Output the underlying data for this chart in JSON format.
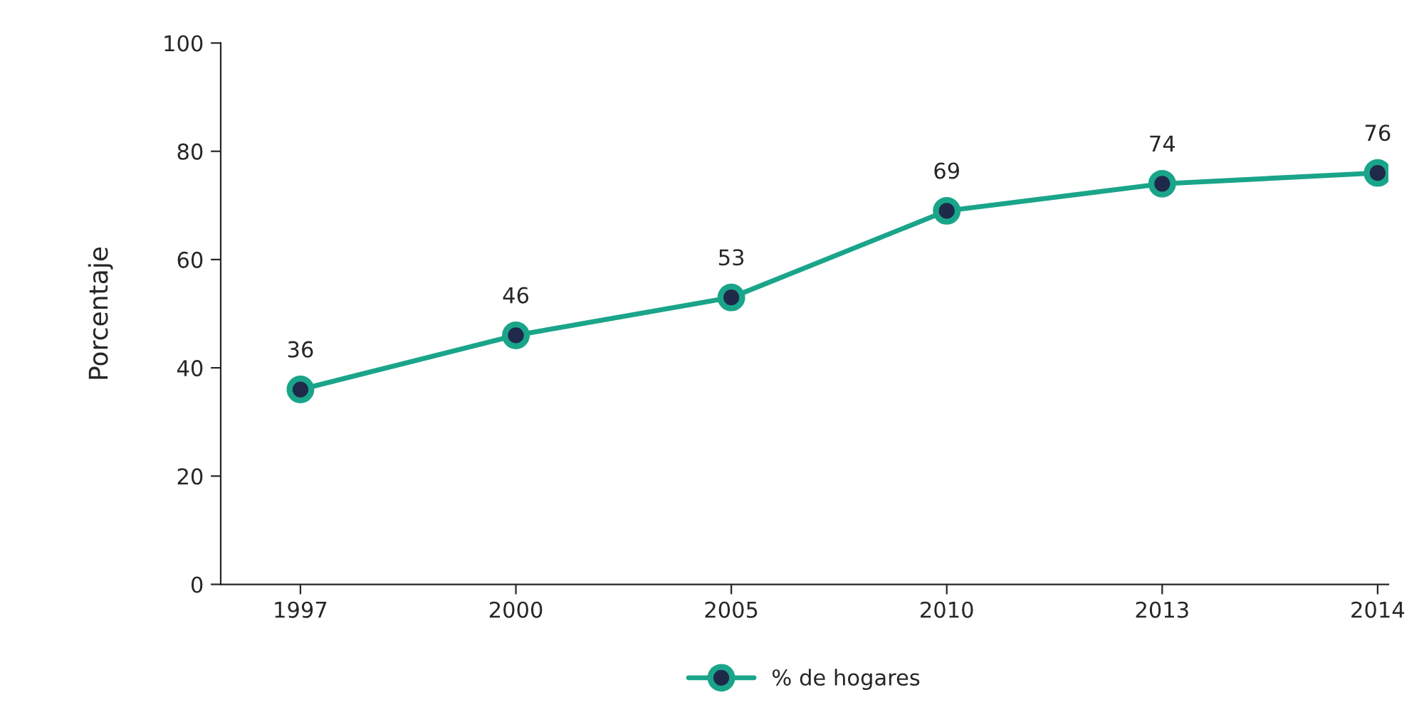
{
  "chart_data": {
    "type": "line",
    "ylabel": "Porcentaje",
    "categories": [
      "1997",
      "2000",
      "2005",
      "2010",
      "2013",
      "2014"
    ],
    "series": [
      {
        "name": "% de hogares",
        "color": "#1aa58a",
        "values": [
          36,
          46,
          53,
          69,
          74,
          76
        ]
      }
    ],
    "ylim": [
      0,
      100
    ],
    "yticks": [
      0,
      20,
      40,
      60,
      80,
      100
    ],
    "data_labels": true,
    "grid": false,
    "legend": "bottom",
    "marker": "circle",
    "line_style": "solid"
  }
}
